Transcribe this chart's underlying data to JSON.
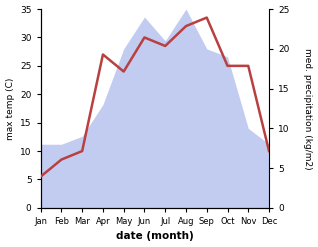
{
  "months": [
    "Jan",
    "Feb",
    "Mar",
    "Apr",
    "May",
    "Jun",
    "Jul",
    "Aug",
    "Sep",
    "Oct",
    "Nov",
    "Dec"
  ],
  "month_x": [
    1,
    2,
    3,
    4,
    5,
    6,
    7,
    8,
    9,
    10,
    11,
    12
  ],
  "temperature": [
    5.5,
    8.5,
    10.0,
    27.0,
    24.0,
    30.0,
    28.5,
    32.0,
    33.5,
    25.0,
    25.0,
    10.0
  ],
  "precipitation": [
    8,
    8,
    9,
    13,
    20,
    24,
    21,
    25,
    20,
    19,
    10,
    8
  ],
  "temp_color": "#b94040",
  "precip_color": "#b8c4ee",
  "temp_ylim": [
    0,
    35
  ],
  "precip_ylim": [
    0,
    25
  ],
  "temp_yticks": [
    0,
    5,
    10,
    15,
    20,
    25,
    30,
    35
  ],
  "precip_yticks": [
    0,
    5,
    10,
    15,
    20,
    25
  ],
  "xlabel": "date (month)",
  "ylabel_left": "max temp (C)",
  "ylabel_right": "med. precipitation (kg/m2)",
  "figsize": [
    3.18,
    2.47
  ],
  "dpi": 100,
  "bg_color": "#f5f5f5"
}
